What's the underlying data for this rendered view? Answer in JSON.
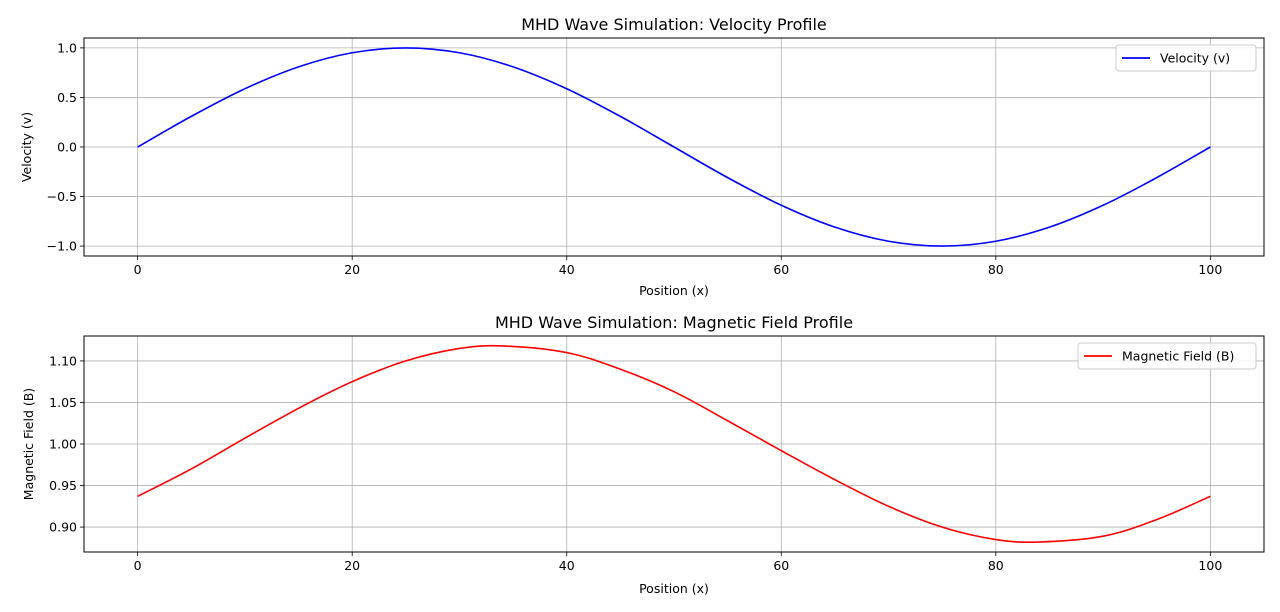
{
  "chart_data": [
    {
      "type": "line",
      "title": "MHD Wave Simulation: Velocity Profile",
      "xlabel": "Position (x)",
      "ylabel": "Velocity (v)",
      "xlim": [
        -5,
        105
      ],
      "ylim": [
        -1.1,
        1.1
      ],
      "xticks": [
        0,
        20,
        40,
        60,
        80,
        100
      ],
      "yticks": [
        -1.0,
        -0.5,
        0.0,
        0.5,
        1.0
      ],
      "ytick_labels": [
        "−1.0",
        "−0.5",
        "0.0",
        "0.5",
        "1.0"
      ],
      "grid": true,
      "legend_position": "top-right",
      "series": [
        {
          "name": "Velocity (v)",
          "color": "#0000ff",
          "x": [
            0,
            5,
            10,
            15,
            20,
            25,
            30,
            35,
            40,
            45,
            50,
            55,
            60,
            65,
            70,
            75,
            80,
            85,
            90,
            95,
            100
          ],
          "y": [
            0.0,
            0.309,
            0.588,
            0.809,
            0.951,
            1.0,
            0.951,
            0.809,
            0.588,
            0.309,
            0.0,
            -0.309,
            -0.588,
            -0.809,
            -0.951,
            -1.0,
            -0.951,
            -0.809,
            -0.588,
            -0.309,
            0.0
          ]
        }
      ]
    },
    {
      "type": "line",
      "title": "MHD Wave Simulation: Magnetic Field Profile",
      "xlabel": "Position (x)",
      "ylabel": "Magnetic Field (B)",
      "xlim": [
        -5,
        105
      ],
      "ylim": [
        0.87,
        1.13
      ],
      "xticks": [
        0,
        20,
        40,
        60,
        80,
        100
      ],
      "yticks": [
        0.9,
        0.95,
        1.0,
        1.05,
        1.1
      ],
      "ytick_labels": [
        "0.90",
        "0.95",
        "1.00",
        "1.05",
        "1.10"
      ],
      "grid": true,
      "legend_position": "top-right",
      "series": [
        {
          "name": "Magnetic Field (B)",
          "color": "#ff0000",
          "x": [
            0,
            5,
            10,
            15,
            20,
            25,
            30,
            34,
            40,
            45,
            50,
            55,
            60,
            65,
            70,
            75,
            80,
            84,
            90,
            95,
            100
          ],
          "y": [
            0.937,
            0.97,
            1.007,
            1.043,
            1.075,
            1.1,
            1.115,
            1.118,
            1.11,
            1.09,
            1.063,
            1.028,
            0.992,
            0.957,
            0.925,
            0.9,
            0.885,
            0.882,
            0.889,
            0.909,
            0.937
          ]
        }
      ]
    }
  ]
}
